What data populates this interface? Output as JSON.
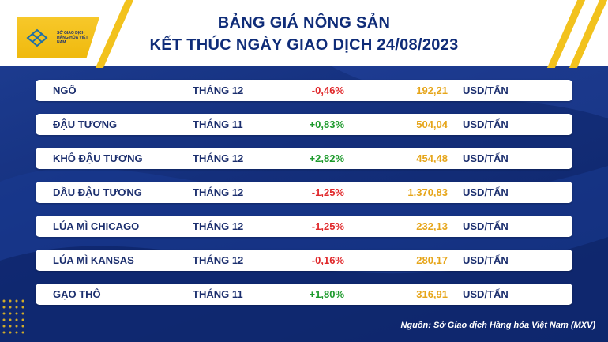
{
  "header": {
    "title_line1": "BẢNG GIÁ NÔNG SẢN",
    "title_line2": "KẾT THÚC NGÀY GIAO DỊCH 24/08/2023",
    "logo_text": "SỞ GIAO DỊCH HÀNG HÓA VIỆT NAM"
  },
  "rows": [
    {
      "name": "NGÔ",
      "month": "THÁNG 12",
      "change": "-0,46%",
      "price": "192,21",
      "unit": "USD/TẤN"
    },
    {
      "name": "ĐẬU TƯƠNG",
      "month": "THÁNG 11",
      "change": "+0,83%",
      "price": "504,04",
      "unit": "USD/TẤN"
    },
    {
      "name": "KHÔ ĐẬU TƯƠNG",
      "month": "THÁNG 12",
      "change": "+2,82%",
      "price": "454,48",
      "unit": "USD/TẤN"
    },
    {
      "name": "DẦU ĐẬU TƯƠNG",
      "month": "THÁNG 12",
      "change": "-1,25%",
      "price": "1.370,83",
      "unit": "USD/TẤN"
    },
    {
      "name": "LÚA MÌ CHICAGO",
      "month": "THÁNG 12",
      "change": "-1,25%",
      "price": "232,13",
      "unit": "USD/TẤN"
    },
    {
      "name": "LÚA MÌ KANSAS",
      "month": "THÁNG 12",
      "change": "-0,16%",
      "price": "280,17",
      "unit": "USD/TẤN"
    },
    {
      "name": "GẠO THÔ",
      "month": "THÁNG 11",
      "change": "+1,80%",
      "price": "316,91",
      "unit": "USD/TẤN"
    }
  ],
  "colors": {
    "negative": "#e0282b",
    "positive": "#1d9a2c",
    "price": "#e6a519",
    "accent": "#f2c21d",
    "navy": "#1c2f6e"
  },
  "footer": {
    "source": "Nguồn: Sở Giao dịch Hàng hóa Việt Nam (MXV)"
  }
}
